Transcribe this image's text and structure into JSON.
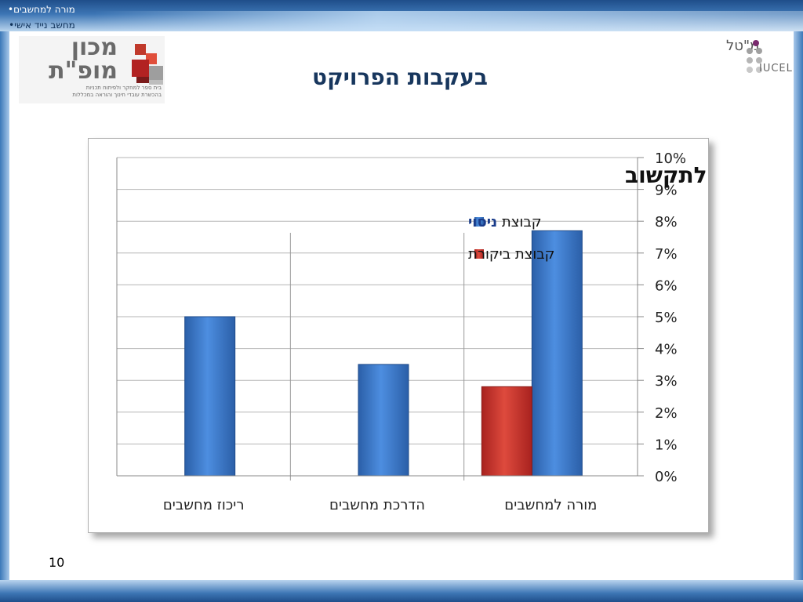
{
  "nav": {
    "items": [
      "מורה למחשבים•",
      "מחשב נייד אישי•"
    ]
  },
  "logo_left": {
    "line1": "מכון",
    "line2": "מופ\"ת",
    "tagline1": "בית ספר למחקר ולפיתוח תכניות",
    "tagline2": "בהכשרת עובדי חינוך והוראה במכללות"
  },
  "logo_right": {
    "hebrew": "מ\"טל",
    "english": "IUCEL"
  },
  "page_title": "בעקבות הפרויקט",
  "slide_number": "10",
  "colors": {
    "experiment": "#3a7bd5",
    "control": "#c8302c",
    "title_blue": "#17365d"
  },
  "chart_data": {
    "type": "bar",
    "title": "תפקידים הקשורים לתקשוב",
    "categories": [
      "מורה למחשבים",
      "הדרכת מחשבים",
      "ריכוז מחשבים"
    ],
    "series": [
      {
        "name_prefix": "קבוצת",
        "name_highlight": "ניסוי",
        "name": "קבוצת ניסוי",
        "values": [
          7.7,
          3.5,
          5.0
        ]
      },
      {
        "name": "קבוצת ביקורת",
        "values": [
          2.8,
          null,
          null
        ]
      }
    ],
    "y_ticks": [
      "0%",
      "1%",
      "2%",
      "3%",
      "4%",
      "5%",
      "6%",
      "7%",
      "8%",
      "9%",
      "10%"
    ],
    "ylim": [
      0,
      10
    ],
    "y_unit": "%",
    "y_axis_position": "right",
    "legend_position": "top-right",
    "grid": true
  }
}
